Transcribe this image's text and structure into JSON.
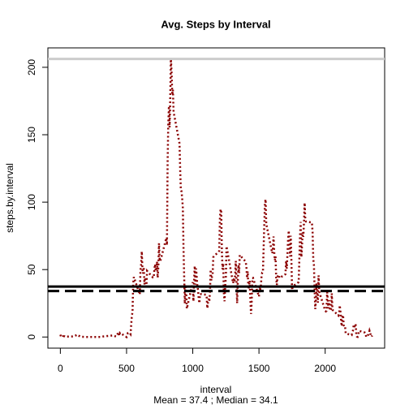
{
  "chart_data": {
    "type": "line",
    "title": "Avg. Steps by Interval",
    "x_label": "interval",
    "y_label": "steps.by.interval",
    "subtitle": "Mean = 37.4 ; Median = 34.1",
    "x": [
      0,
      5,
      10,
      15,
      20,
      25,
      30,
      40,
      50,
      100,
      130,
      150,
      200,
      230,
      300,
      330,
      400,
      420,
      440,
      445,
      450,
      500,
      510,
      520,
      530,
      540,
      545,
      550,
      555,
      600,
      605,
      610,
      615,
      620,
      625,
      630,
      635,
      640,
      645,
      650,
      655,
      700,
      705,
      710,
      715,
      720,
      725,
      730,
      735,
      740,
      745,
      750,
      755,
      800,
      805,
      810,
      815,
      820,
      825,
      830,
      835,
      840,
      845,
      850,
      855,
      900,
      905,
      910,
      915,
      920,
      925,
      930,
      935,
      940,
      945,
      950,
      955,
      1000,
      1005,
      1010,
      1015,
      1020,
      1025,
      1030,
      1035,
      1040,
      1045,
      1050,
      1055,
      1100,
      1105,
      1110,
      1115,
      1120,
      1125,
      1130,
      1135,
      1140,
      1145,
      1150,
      1155,
      1200,
      1205,
      1210,
      1215,
      1220,
      1225,
      1230,
      1235,
      1240,
      1245,
      1250,
      1255,
      1300,
      1305,
      1310,
      1315,
      1320,
      1325,
      1330,
      1335,
      1340,
      1345,
      1350,
      1355,
      1400,
      1405,
      1410,
      1415,
      1420,
      1425,
      1430,
      1435,
      1440,
      1445,
      1450,
      1455,
      1500,
      1505,
      1510,
      1515,
      1520,
      1525,
      1530,
      1535,
      1540,
      1545,
      1550,
      1555,
      1600,
      1605,
      1610,
      1615,
      1620,
      1625,
      1630,
      1635,
      1640,
      1645,
      1650,
      1655,
      1700,
      1705,
      1710,
      1715,
      1720,
      1725,
      1730,
      1735,
      1740,
      1745,
      1750,
      1755,
      1800,
      1805,
      1810,
      1815,
      1820,
      1825,
      1830,
      1835,
      1840,
      1845,
      1850,
      1855,
      1900,
      1905,
      1910,
      1915,
      1920,
      1925,
      1930,
      1935,
      1940,
      1945,
      1950,
      1955,
      2000,
      2005,
      2010,
      2015,
      2020,
      2025,
      2030,
      2035,
      2040,
      2045,
      2050,
      2055,
      2100,
      2105,
      2110,
      2115,
      2120,
      2125,
      2130,
      2135,
      2140,
      2145,
      2150,
      2155,
      2200,
      2205,
      2210,
      2215,
      2220,
      2225,
      2230,
      2235,
      2240,
      2245,
      2250,
      2255,
      2300,
      2305,
      2310,
      2315,
      2320,
      2325,
      2330,
      2335,
      2340,
      2345,
      2350,
      2355
    ],
    "series": [
      {
        "color": "#8b0000",
        "values": [
          1.7,
          0.3,
          0.1,
          0.2,
          0.1,
          2.1,
          0.5,
          0,
          0.3,
          0.4,
          1.8,
          0.2,
          0,
          0,
          0,
          0.5,
          1.2,
          0.3,
          3.5,
          0.8,
          3.1,
          0,
          3,
          3.3,
          2.1,
          16,
          18.3,
          39.5,
          44.5,
          31.5,
          49.3,
          53.8,
          63.5,
          50,
          47,
          52,
          39,
          44,
          44,
          37,
          49,
          44,
          44,
          50,
          54,
          49,
          50,
          56,
          44,
          52,
          69.5,
          57.8,
          56.2,
          73.4,
          68.2,
          129.4,
          157.5,
          171.2,
          155.4,
          177.3,
          206.2,
          195.9,
          179.6,
          183.4,
          167,
          143.5,
          124,
          109,
          108,
          103,
          96,
          66.2,
          45.2,
          24.8,
          38.8,
          35,
          21,
          40.6,
          26.5,
          42.4,
          52.7,
          38.9,
          50.8,
          44.3,
          37.4,
          34.7,
          28.3,
          25.1,
          31.9,
          31.4,
          29.7,
          21.3,
          25.5,
          28.4,
          26.5,
          33.4,
          50,
          42,
          44.6,
          46,
          59.2,
          63.9,
          87.7,
          94.8,
          92.8,
          63.4,
          50.2,
          54.5,
          32.4,
          26.5,
          37.7,
          45.1,
          67.3,
          42.3,
          39.9,
          43.3,
          41,
          46.2,
          56.4,
          42.8,
          25.1,
          40,
          53.5,
          47.3,
          60.8,
          55.8,
          52,
          43.6,
          48.7,
          35.5,
          37.5,
          41.8,
          27.5,
          17.1,
          26.1,
          43.6,
          43.8,
          30,
          36.1,
          35.5,
          38.8,
          46,
          47.8,
          48.1,
          65.3,
          82.9,
          98.7,
          102.1,
          84,
          62.1,
          64.1,
          74.5,
          63.2,
          56.9,
          59.8,
          43.9,
          38.6,
          44.7,
          45.5,
          46.2,
          43.7,
          46.6,
          56.3,
          50.7,
          61.2,
          72.7,
          78.9,
          68.9,
          59.7,
          75.1,
          56.5,
          34.8,
          37.5,
          40.7,
          58,
          74.7,
          85.3,
          59.3,
          67.8,
          77.7,
          74.2,
          85.3,
          99.5,
          86.6,
          85.6,
          84.9,
          77.8,
          58,
          53.4,
          36.3,
          20.7,
          27.4,
          40,
          30.2,
          25.5,
          45.7,
          33.5,
          19.6,
          19,
          19.3,
          33.3,
          26.8,
          21.2,
          27.3,
          21.3,
          19.5,
          21.3,
          32.3,
          20.2,
          15.9,
          17.2,
          23.5,
          19.2,
          12.5,
          8,
          14.7,
          16.3,
          8.7,
          7.8,
          8.1,
          2.6,
          1.5,
          3.7,
          4.8,
          8.5,
          7.1,
          8.7,
          9.8,
          2.2,
          0.3,
          0.1,
          1.6,
          4.6,
          3.3,
          2.8,
          0,
          0.8,
          1,
          1.6,
          2.6,
          4.7,
          3.3,
          0.6,
          0.2,
          1.1
        ]
      }
    ],
    "hlines": [
      {
        "value": 206.2,
        "color": "#cccccc",
        "dash": "solid"
      },
      {
        "value": 37.4,
        "color": "#000000",
        "dash": "solid"
      },
      {
        "value": 34.1,
        "color": "#000000",
        "dash": "dashed"
      }
    ],
    "xlim": [
      -94.2,
      2449.2
    ],
    "ylim": [
      -8.25,
      214.4
    ],
    "xticks": [
      0,
      500,
      1000,
      1500,
      2000
    ],
    "yticks": [
      0,
      50,
      100,
      150,
      200
    ]
  }
}
